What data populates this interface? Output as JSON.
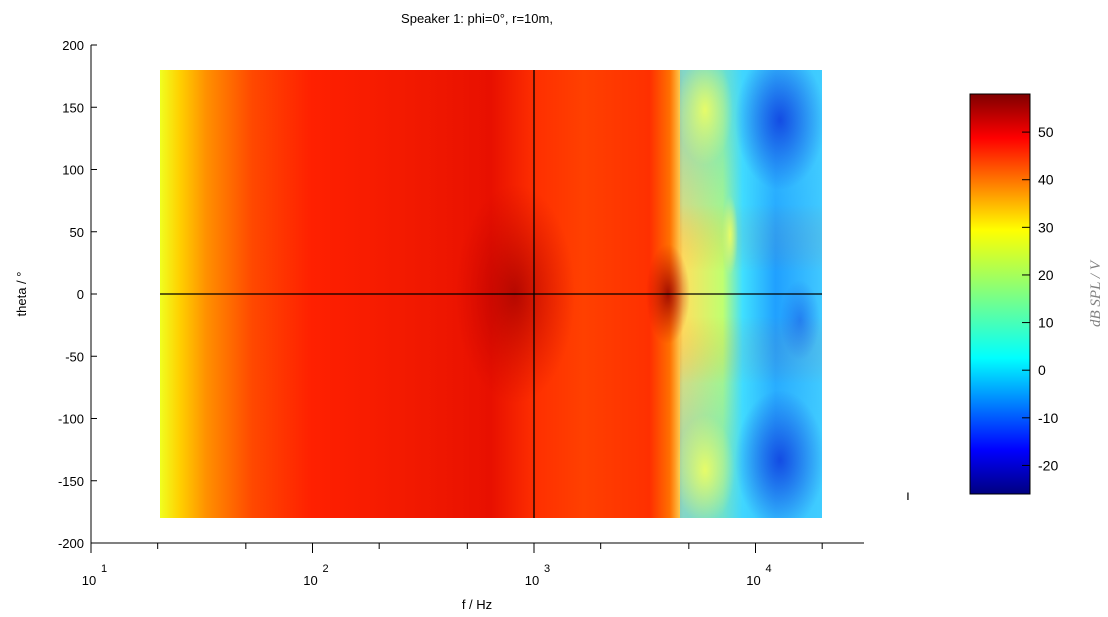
{
  "chart_data": {
    "type": "heatmap",
    "title": "Speaker 1: phi=0°, r=10m,",
    "xlabel": "f / Hz",
    "ylabel": "theta / °",
    "colorbar_label": "dB SPL / V",
    "x_scale": "log",
    "xlim": [
      10,
      50000
    ],
    "ylim": [
      -200,
      200
    ],
    "data_x_range": [
      20,
      20000
    ],
    "data_y_range": [
      -180,
      180
    ],
    "x_ticks": [
      {
        "base": "10",
        "exp": "1",
        "value": 10
      },
      {
        "base": "10",
        "exp": "2",
        "value": 100
      },
      {
        "base": "10",
        "exp": "3",
        "value": 1000
      },
      {
        "base": "10",
        "exp": "4",
        "value": 10000
      }
    ],
    "y_ticks": [
      "200",
      "150",
      "100",
      "50",
      "0",
      "-50",
      "-100",
      "-150",
      "-200"
    ],
    "colorbar_range": [
      -26,
      58
    ],
    "colorbar_ticks": [
      "50",
      "40",
      "30",
      "20",
      "10",
      "0",
      "-10",
      "-20"
    ],
    "colormap": "jet",
    "crosshair": {
      "x": 1000,
      "y": 0
    },
    "grid": false,
    "stray_mark": "ı"
  }
}
